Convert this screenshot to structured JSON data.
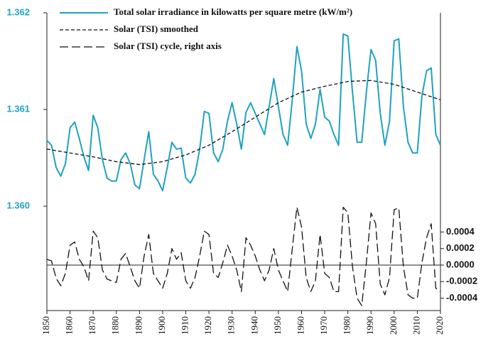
{
  "chart_data": {
    "type": "line",
    "x": [
      1850,
      1852,
      1854,
      1856,
      1858,
      1860,
      1862,
      1864,
      1866,
      1868,
      1870,
      1872,
      1874,
      1876,
      1878,
      1880,
      1882,
      1884,
      1886,
      1888,
      1890,
      1892,
      1894,
      1896,
      1898,
      1900,
      1902,
      1904,
      1906,
      1908,
      1910,
      1912,
      1914,
      1916,
      1918,
      1920,
      1922,
      1924,
      1926,
      1928,
      1930,
      1932,
      1934,
      1936,
      1938,
      1940,
      1942,
      1944,
      1946,
      1948,
      1950,
      1952,
      1954,
      1956,
      1958,
      1960,
      1962,
      1964,
      1966,
      1968,
      1970,
      1972,
      1974,
      1976,
      1978,
      1980,
      1982,
      1984,
      1986,
      1988,
      1990,
      1992,
      1994,
      1996,
      1998,
      2000,
      2002,
      2004,
      2006,
      2008,
      2010,
      2012,
      2014,
      2016,
      2018,
      2020
    ],
    "series": [
      {
        "name": "Total solar irradiance in kilowatts per square metre (kW/m²)",
        "color": "#1fa2c0",
        "dash": "none",
        "values": [
          1.36068,
          1.36063,
          1.3604,
          1.36031,
          1.36044,
          1.36081,
          1.36087,
          1.3607,
          1.36051,
          1.36037,
          1.36094,
          1.36081,
          1.36048,
          1.36029,
          1.36026,
          1.36026,
          1.36048,
          1.36055,
          1.36044,
          1.36022,
          1.36018,
          1.36048,
          1.36077,
          1.36033,
          1.36026,
          1.36016,
          1.3604,
          1.36066,
          1.36059,
          1.3606,
          1.36029,
          1.36024,
          1.36033,
          1.36059,
          1.36098,
          1.36096,
          1.36055,
          1.36046,
          1.36059,
          1.36088,
          1.36107,
          1.36085,
          1.36059,
          1.36097,
          1.36107,
          1.36096,
          1.36085,
          1.36074,
          1.36103,
          1.36132,
          1.36103,
          1.36074,
          1.36063,
          1.3611,
          1.36165,
          1.3614,
          1.36085,
          1.3607,
          1.36085,
          1.36121,
          1.36092,
          1.36088,
          1.36074,
          1.36063,
          1.36178,
          1.36176,
          1.36118,
          1.36066,
          1.36066,
          1.36118,
          1.36162,
          1.36151,
          1.36096,
          1.36063,
          1.36088,
          1.36171,
          1.36173,
          1.36103,
          1.36066,
          1.36055,
          1.36055,
          1.36114,
          1.3614,
          1.36143,
          1.36074,
          1.36063
        ]
      },
      {
        "name": "Solar (TSI) smoothed",
        "color": "#111111",
        "dash": "5,3",
        "x": [
          1850,
          1860,
          1870,
          1880,
          1890,
          1900,
          1910,
          1920,
          1930,
          1940,
          1950,
          1960,
          1970,
          1980,
          1990,
          2000,
          2010,
          2020
        ],
        "values": [
          1.36059,
          1.36055,
          1.36051,
          1.36046,
          1.36043,
          1.36046,
          1.36053,
          1.36063,
          1.36077,
          1.36092,
          1.36107,
          1.36118,
          1.36124,
          1.36129,
          1.3613,
          1.36126,
          1.36118,
          1.3611
        ]
      },
      {
        "name": "Solar (TSI) cycle, right axis",
        "color": "#111111",
        "dash": "12,5",
        "axis": "y2",
        "values": [
          7e-05,
          5e-05,
          -0.00016,
          -0.00025,
          -0.0001,
          0.00024,
          0.00028,
          7e-05,
          -2e-05,
          -0.00019,
          0.00041,
          0.00033,
          -6e-05,
          -0.00017,
          -0.00019,
          -0.00021,
          7e-05,
          0.00014,
          -2e-05,
          -0.00019,
          -0.00028,
          0.00011,
          0.00037,
          -0.0001,
          -0.00019,
          -0.00028,
          -0.0001,
          0.0002,
          7e-05,
          0.00015,
          -0.00019,
          -0.00028,
          -0.00015,
          0.00011,
          0.00041,
          0.00037,
          -0.0001,
          -0.00015,
          3e-05,
          0.00024,
          0.00011,
          -6e-05,
          -0.00032,
          0.00033,
          0.00024,
          0.00011,
          -6e-05,
          -0.00019,
          -6e-05,
          0.0002,
          -6e-05,
          -0.00019,
          -0.00032,
          0.0002,
          0.0007,
          0.00046,
          -0.00015,
          -0.00032,
          -0.00019,
          0.00037,
          -0.0001,
          -0.00015,
          -0.00032,
          -0.00032,
          0.0007,
          0.00063,
          -2e-05,
          -0.0004,
          -0.00049,
          3e-05,
          0.00063,
          0.0005,
          -0.00023,
          -0.00036,
          -0.00015,
          0.00067,
          0.00069,
          -2e-05,
          -0.00036,
          -0.0004,
          -0.0004,
          3e-05,
          0.00033,
          0.0005,
          -0.00028,
          -0.00032
        ]
      }
    ],
    "xlim": [
      1850,
      2020
    ],
    "xticks": [
      1850,
      1860,
      1870,
      1880,
      1890,
      1900,
      1910,
      1920,
      1930,
      1940,
      1950,
      1960,
      1970,
      1980,
      1990,
      2000,
      2010,
      2020
    ],
    "ylim": [
      1.35892,
      1.362
    ],
    "yticks": [
      {
        "value": 1.36,
        "label": "1.360"
      },
      1.361,
      1.362
    ],
    "y2lim": [
      -0.00055,
      0.00305
    ],
    "y2ticks": [
      -0.0004,
      -0.0002,
      {
        "value": 0,
        "label": "0.0000"
      },
      0.0002,
      0.0004
    ],
    "y2_zero_line": true,
    "ytick_color": "#1fa2c0"
  }
}
